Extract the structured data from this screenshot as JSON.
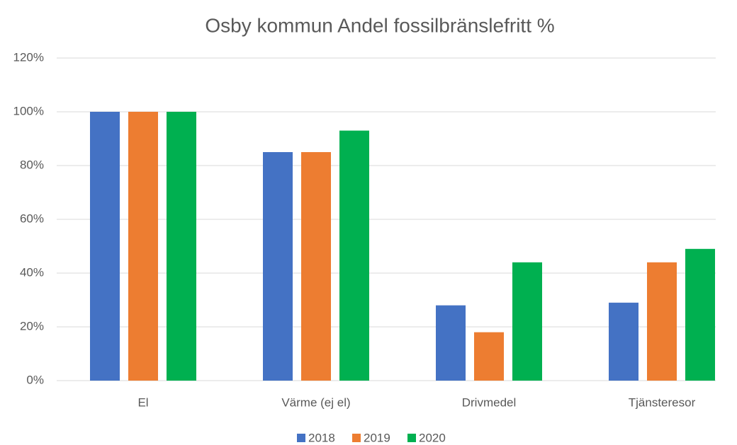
{
  "chart_data": {
    "type": "bar",
    "title": "Osby kommun Andel fossilbränslefritt %",
    "categories": [
      "El",
      "Värme (ej el)",
      "Drivmedel",
      "Tjänsteresor"
    ],
    "series": [
      {
        "name": "2018",
        "color": "#4472c4",
        "values": [
          100,
          85,
          28,
          29
        ]
      },
      {
        "name": "2019",
        "color": "#ed7d31",
        "values": [
          100,
          85,
          18,
          44
        ]
      },
      {
        "name": "2020",
        "color": "#00b050",
        "values": [
          100,
          93,
          44,
          49
        ]
      }
    ],
    "ylim": [
      0,
      120
    ],
    "yticks": [
      {
        "value": 0,
        "label": "0%"
      },
      {
        "value": 20,
        "label": "20%"
      },
      {
        "value": 40,
        "label": "40%"
      },
      {
        "value": 60,
        "label": "60%"
      },
      {
        "value": 80,
        "label": "80%"
      },
      {
        "value": 100,
        "label": "100%"
      },
      {
        "value": 120,
        "label": "120%"
      }
    ],
    "grid": true,
    "legend": "bottom"
  }
}
